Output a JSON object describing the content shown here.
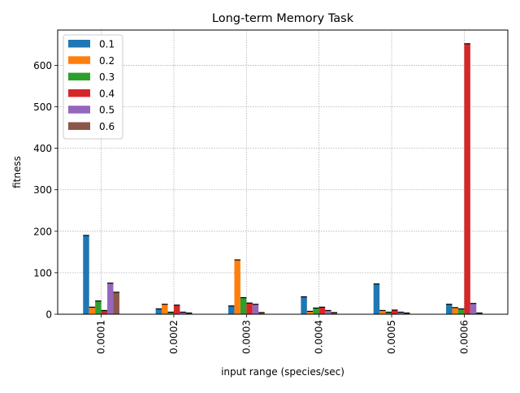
{
  "chart_data": {
    "type": "bar",
    "title": "Long-term Memory Task",
    "xlabel": "input range (species/sec)",
    "ylabel": "fitness",
    "categories": [
      "0.0001",
      "0.0002",
      "0.0003",
      "0.0004",
      "0.0005",
      "0.0006"
    ],
    "ylim": [
      0,
      685
    ],
    "yticks": [
      0,
      100,
      200,
      300,
      400,
      500,
      600
    ],
    "grid": true,
    "legend_position": "top-left",
    "series": [
      {
        "name": "0.1",
        "color": "#1f77b4",
        "values": [
          190,
          13,
          20,
          42,
          73,
          24
        ]
      },
      {
        "name": "0.2",
        "color": "#ff7f0e",
        "values": [
          17,
          24,
          131,
          7,
          9,
          16
        ]
      },
      {
        "name": "0.3",
        "color": "#2ca02c",
        "values": [
          32,
          5,
          40,
          15,
          5,
          13
        ]
      },
      {
        "name": "0.4",
        "color": "#d62728",
        "values": [
          9,
          22,
          27,
          17,
          10,
          652
        ]
      },
      {
        "name": "0.5",
        "color": "#9467bd",
        "values": [
          75,
          5,
          24,
          9,
          5,
          26
        ]
      },
      {
        "name": "0.6",
        "color": "#8c564b",
        "values": [
          53,
          3,
          4,
          4,
          3,
          3
        ]
      }
    ]
  }
}
